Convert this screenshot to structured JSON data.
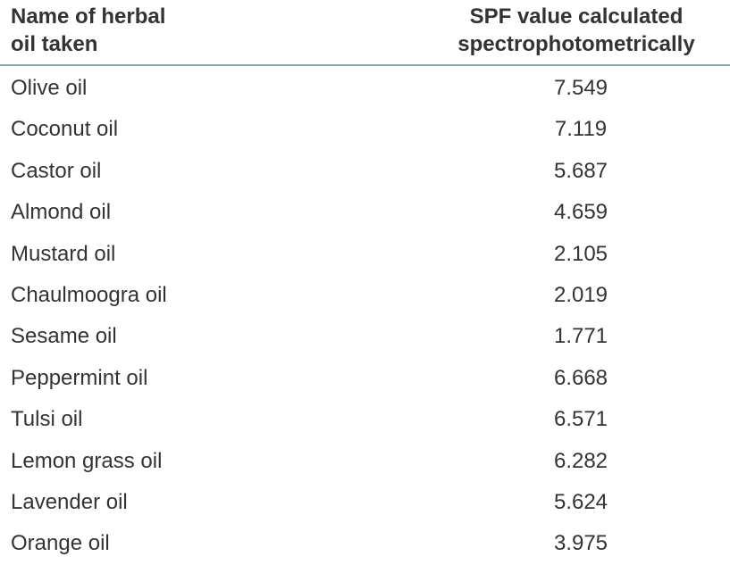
{
  "table": {
    "headers": {
      "col1_line1": "Name of herbal",
      "col1_line2": "oil taken",
      "col2_line1": "SPF value calculated",
      "col2_line2": "spectrophotometrically"
    },
    "rows": [
      {
        "name": "Olive oil",
        "value": "7.549"
      },
      {
        "name": "Coconut oil",
        "value": "7.119"
      },
      {
        "name": "Castor oil",
        "value": "5.687"
      },
      {
        "name": "Almond oil",
        "value": "4.659"
      },
      {
        "name": "Mustard oil",
        "value": "2.105"
      },
      {
        "name": "Chaulmoogra oil",
        "value": "2.019"
      },
      {
        "name": "Sesame oil",
        "value": "1.771"
      },
      {
        "name": "Peppermint oil",
        "value": "6.668"
      },
      {
        "name": "Tulsi oil",
        "value": "6.571"
      },
      {
        "name": "Lemon grass oil",
        "value": "6.282"
      },
      {
        "name": "Lavender oil",
        "value": "5.624"
      },
      {
        "name": "Orange oil",
        "value": "3.975"
      }
    ]
  }
}
